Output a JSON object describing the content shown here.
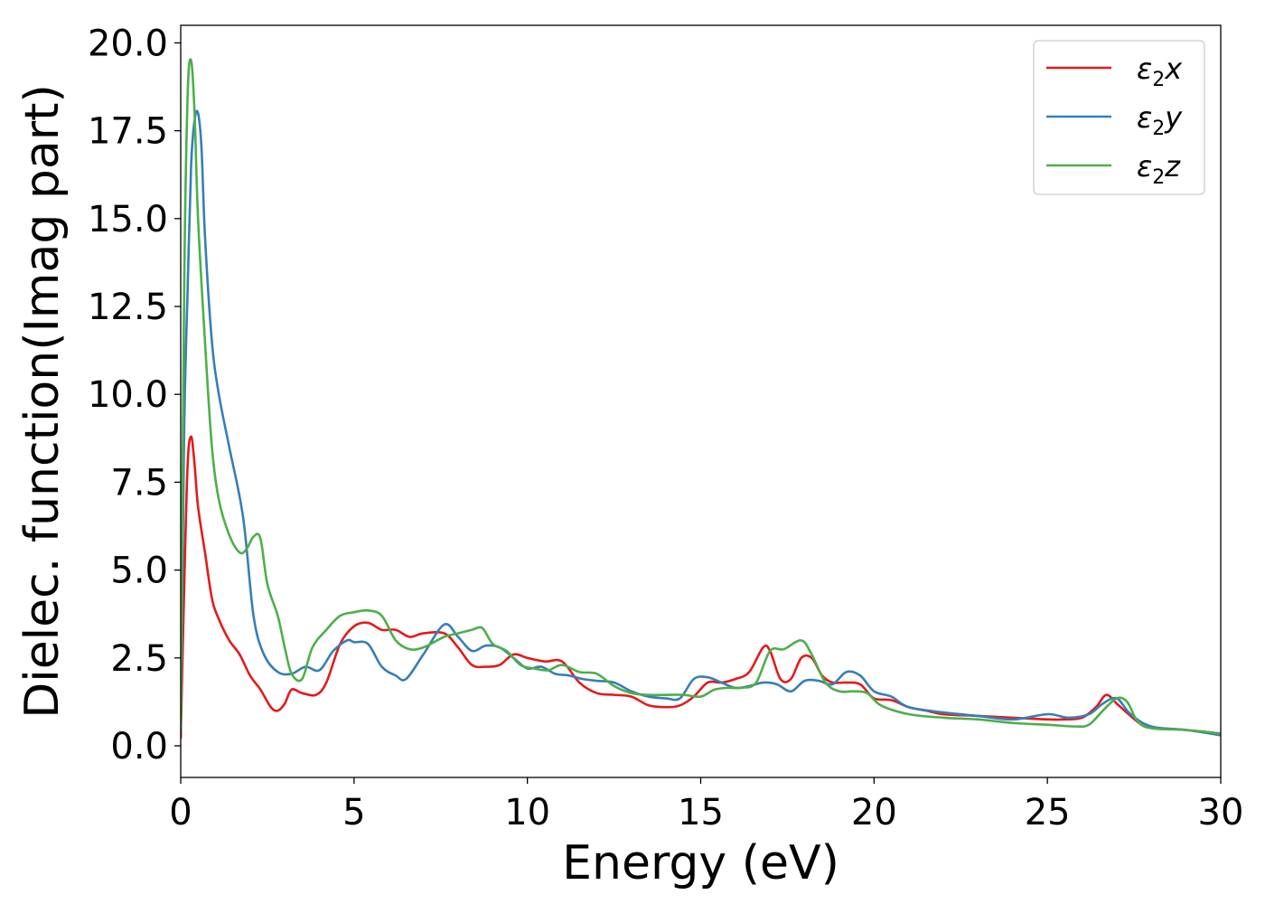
{
  "chart_data": {
    "type": "line",
    "title": "",
    "xlabel": "Energy (eV)",
    "ylabel": "Dielec. function(Imag part)",
    "xlim": [
      0,
      30
    ],
    "ylim": [
      -0.9,
      20.5
    ],
    "x_ticks": [
      0,
      5,
      10,
      15,
      20,
      25,
      30
    ],
    "x_tick_labels": [
      "0",
      "5",
      "10",
      "15",
      "20",
      "25",
      "30"
    ],
    "y_ticks": [
      0,
      2.5,
      5,
      7.5,
      10,
      12.5,
      15,
      17.5,
      20
    ],
    "y_tick_labels": [
      "0.0",
      "2.5",
      "5.0",
      "7.5",
      "10.0",
      "12.5",
      "15.0",
      "17.5",
      "20.0"
    ],
    "grid": false,
    "legend_position": "top-right",
    "series": [
      {
        "name": "ε₂x",
        "legend_main": "ε",
        "legend_sub": "2",
        "legend_suffix": "x",
        "color": "#e41a1c",
        "x": [
          0,
          0.1,
          0.2,
          0.3,
          0.4,
          0.5,
          0.7,
          0.9,
          1.1,
          1.4,
          1.7,
          2.0,
          2.3,
          2.6,
          2.8,
          3.0,
          3.2,
          3.5,
          3.9,
          4.2,
          4.6,
          5.0,
          5.4,
          5.8,
          6.2,
          6.6,
          7.0,
          7.6,
          8.0,
          8.4,
          8.8,
          9.2,
          9.6,
          10.0,
          10.5,
          11.0,
          11.5,
          12.0,
          12.5,
          13.0,
          13.5,
          14.0,
          14.4,
          14.8,
          15.2,
          15.6,
          16.0,
          16.4,
          16.8,
          17.0,
          17.3,
          17.6,
          17.9,
          18.2,
          18.5,
          18.8,
          19.2,
          19.6,
          20.0,
          20.5,
          21.0,
          21.5,
          22.0,
          23.0,
          24.0,
          25.0,
          25.5,
          26.0,
          26.4,
          26.7,
          27.0,
          27.4,
          27.8,
          28.2,
          29.0,
          30.0
        ],
        "y": [
          0.2,
          4.5,
          8.0,
          8.8,
          8.0,
          6.8,
          5.5,
          4.2,
          3.6,
          3.0,
          2.6,
          2.0,
          1.6,
          1.1,
          1.0,
          1.2,
          1.6,
          1.5,
          1.45,
          1.8,
          2.9,
          3.4,
          3.5,
          3.3,
          3.3,
          3.1,
          3.2,
          3.2,
          2.8,
          2.3,
          2.25,
          2.3,
          2.6,
          2.5,
          2.4,
          2.4,
          1.8,
          1.5,
          1.45,
          1.4,
          1.15,
          1.1,
          1.15,
          1.4,
          1.8,
          1.8,
          1.9,
          2.1,
          2.8,
          2.7,
          1.9,
          1.9,
          2.5,
          2.5,
          2.0,
          1.8,
          1.8,
          1.75,
          1.35,
          1.3,
          1.1,
          1.0,
          0.9,
          0.85,
          0.8,
          0.75,
          0.75,
          0.8,
          1.1,
          1.45,
          1.2,
          0.85,
          0.55,
          0.5,
          0.45,
          0.35
        ]
      },
      {
        "name": "ε₂y",
        "legend_main": "ε",
        "legend_sub": "2",
        "legend_suffix": "y",
        "color": "#377eb8",
        "x": [
          0,
          0.1,
          0.2,
          0.3,
          0.4,
          0.5,
          0.6,
          0.7,
          0.9,
          1.1,
          1.4,
          1.8,
          2.1,
          2.4,
          2.8,
          3.2,
          3.6,
          4.0,
          4.4,
          4.8,
          5.0,
          5.4,
          5.8,
          6.2,
          6.5,
          7.0,
          7.6,
          8.0,
          8.4,
          8.8,
          9.2,
          9.6,
          10.0,
          10.4,
          10.8,
          11.2,
          11.6,
          12.0,
          12.5,
          13.0,
          13.5,
          14.0,
          14.4,
          14.8,
          15.2,
          15.6,
          16.0,
          16.4,
          16.8,
          17.2,
          17.6,
          18.0,
          18.4,
          18.8,
          19.2,
          19.6,
          20.0,
          20.5,
          21.0,
          22.0,
          23.0,
          24.0,
          25.0,
          25.6,
          26.2,
          26.6,
          27.0,
          27.4,
          28.0,
          29.0,
          30.0
        ],
        "y": [
          0.4,
          9.0,
          13.0,
          16.5,
          17.8,
          18.0,
          17.0,
          14.5,
          11.5,
          10.0,
          8.5,
          6.5,
          3.7,
          2.6,
          2.1,
          2.05,
          2.25,
          2.15,
          2.7,
          3.0,
          2.95,
          2.9,
          2.25,
          2.0,
          1.9,
          2.6,
          3.45,
          3.1,
          2.7,
          2.85,
          2.8,
          2.5,
          2.2,
          2.25,
          2.05,
          2.0,
          1.9,
          1.85,
          1.8,
          1.55,
          1.4,
          1.35,
          1.35,
          1.9,
          1.95,
          1.8,
          1.65,
          1.7,
          1.8,
          1.75,
          1.55,
          1.85,
          1.85,
          1.75,
          2.1,
          2.0,
          1.55,
          1.4,
          1.1,
          0.95,
          0.85,
          0.75,
          0.9,
          0.8,
          0.9,
          1.2,
          1.35,
          0.9,
          0.55,
          0.45,
          0.3
        ]
      },
      {
        "name": "ε₂z",
        "legend_main": "ε",
        "legend_sub": "2",
        "legend_suffix": "z",
        "color": "#4daf4a",
        "x": [
          0,
          0.1,
          0.2,
          0.3,
          0.4,
          0.5,
          0.7,
          0.9,
          1.1,
          1.4,
          1.7,
          1.9,
          2.1,
          2.3,
          2.5,
          2.8,
          3.0,
          3.2,
          3.5,
          3.8,
          4.2,
          4.6,
          5.0,
          5.4,
          5.8,
          6.2,
          6.6,
          7.0,
          7.6,
          8.0,
          8.4,
          8.7,
          9.0,
          9.4,
          9.8,
          10.2,
          10.6,
          11.0,
          11.5,
          12.0,
          12.5,
          13.0,
          13.5,
          14.0,
          14.5,
          15.0,
          15.4,
          15.8,
          16.2,
          16.6,
          17.0,
          17.4,
          17.9,
          18.2,
          18.6,
          19.0,
          19.4,
          19.8,
          20.2,
          21.0,
          22.0,
          23.0,
          24.0,
          25.0,
          25.8,
          26.2,
          26.6,
          27.0,
          27.3,
          27.6,
          28.0,
          29.0,
          30.0
        ],
        "y": [
          0.5,
          13.0,
          18.5,
          19.5,
          18.0,
          15.0,
          11.5,
          8.5,
          7.0,
          6.0,
          5.5,
          5.6,
          5.95,
          5.9,
          4.6,
          3.7,
          2.8,
          2.05,
          1.9,
          2.8,
          3.3,
          3.7,
          3.8,
          3.85,
          3.7,
          3.0,
          2.75,
          2.8,
          3.1,
          3.2,
          3.3,
          3.35,
          2.9,
          2.7,
          2.3,
          2.2,
          2.15,
          2.3,
          2.1,
          2.05,
          1.7,
          1.5,
          1.45,
          1.45,
          1.45,
          1.4,
          1.6,
          1.65,
          1.65,
          1.8,
          2.7,
          2.75,
          3.0,
          2.6,
          1.8,
          1.55,
          1.55,
          1.5,
          1.15,
          0.9,
          0.8,
          0.75,
          0.65,
          0.6,
          0.55,
          0.6,
          1.0,
          1.35,
          1.25,
          0.7,
          0.5,
          0.45,
          0.35
        ]
      }
    ]
  }
}
